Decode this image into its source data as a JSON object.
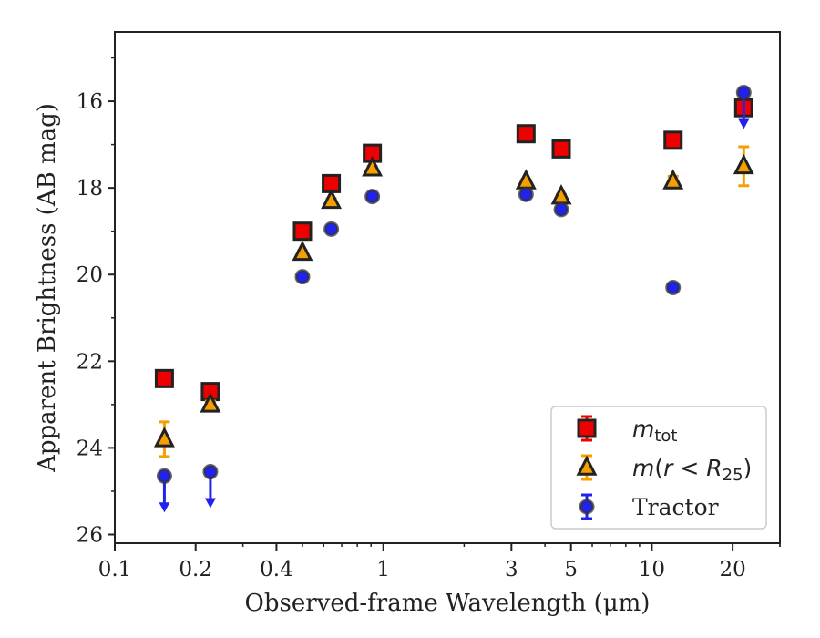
{
  "chart_data": {
    "type": "scatter",
    "xlabel": "Observed-frame Wavelength (μm)",
    "ylabel": "Apparent Brightness (AB mag)",
    "x_scale": "log",
    "xlim": [
      0.1,
      30
    ],
    "ylim": [
      26.2,
      14.4
    ],
    "x_ticks": [
      {
        "value": 0.1,
        "label": "0.1"
      },
      {
        "value": 0.2,
        "label": "0.2"
      },
      {
        "value": 0.4,
        "label": "0.4"
      },
      {
        "value": 1,
        "label": "1"
      },
      {
        "value": 3,
        "label": "3"
      },
      {
        "value": 5,
        "label": "5"
      },
      {
        "value": 10,
        "label": "10"
      },
      {
        "value": 20,
        "label": "20"
      }
    ],
    "y_ticks": [
      {
        "value": 16,
        "label": "16"
      },
      {
        "value": 18,
        "label": "18"
      },
      {
        "value": 20,
        "label": "20"
      },
      {
        "value": 22,
        "label": "22"
      },
      {
        "value": 24,
        "label": "24"
      },
      {
        "value": 26,
        "label": "26"
      }
    ],
    "grid": false,
    "legend_position": "bottom-right",
    "series": [
      {
        "key": "mtot",
        "legend_label": "m_tot",
        "marker": "square",
        "color": "#ee0000",
        "edge_color": "#222222",
        "err_color": "#ee0000",
        "points": [
          {
            "x": 0.153,
            "y": 22.4,
            "err": 0.06
          },
          {
            "x": 0.227,
            "y": 22.7,
            "err": 0.06
          },
          {
            "x": 0.5,
            "y": 19.0,
            "err": 0.05
          },
          {
            "x": 0.64,
            "y": 17.9,
            "err": 0.05
          },
          {
            "x": 0.91,
            "y": 17.2,
            "err": 0.05
          },
          {
            "x": 3.4,
            "y": 16.75,
            "err": 0.05
          },
          {
            "x": 4.6,
            "y": 17.1,
            "err": 0.05
          },
          {
            "x": 12.0,
            "y": 16.9,
            "err": 0.05
          },
          {
            "x": 22.0,
            "y": 16.15,
            "err": 0.05
          }
        ]
      },
      {
        "key": "mr25",
        "legend_label": "m(r < R25)",
        "marker": "triangle",
        "color": "#f5a000",
        "edge_color": "#222222",
        "err_color": "#f5a000",
        "points": [
          {
            "x": 0.153,
            "y": 23.8,
            "err": 0.4
          },
          {
            "x": 0.227,
            "y": 23.0,
            "err": 0.08
          },
          {
            "x": 0.5,
            "y": 19.5,
            "err": 0.05
          },
          {
            "x": 0.64,
            "y": 18.3,
            "err": 0.05
          },
          {
            "x": 0.91,
            "y": 17.55,
            "err": 0.05
          },
          {
            "x": 3.4,
            "y": 17.85,
            "err": 0.05
          },
          {
            "x": 4.6,
            "y": 18.2,
            "err": 0.05
          },
          {
            "x": 12.0,
            "y": 17.85,
            "err": 0.12
          },
          {
            "x": 22.0,
            "y": 17.5,
            "err": 0.45
          }
        ]
      },
      {
        "key": "tractor",
        "legend_label": "Tractor",
        "marker": "circle",
        "color": "#2222ee",
        "edge_color": "#333333",
        "err_color": "#2222ee",
        "points": [
          {
            "x": 0.153,
            "y": 24.65,
            "upper_limit": true
          },
          {
            "x": 0.227,
            "y": 24.55,
            "upper_limit": true
          },
          {
            "x": 0.5,
            "y": 20.05,
            "err": 0.05
          },
          {
            "x": 0.64,
            "y": 18.95,
            "err": 0.05
          },
          {
            "x": 0.91,
            "y": 18.2,
            "err": 0.05
          },
          {
            "x": 3.4,
            "y": 18.15,
            "err": 0.05
          },
          {
            "x": 4.6,
            "y": 18.5,
            "err": 0.05
          },
          {
            "x": 12.0,
            "y": 20.3,
            "err": 0.05
          },
          {
            "x": 22.0,
            "y": 15.8,
            "upper_limit": true
          }
        ]
      }
    ]
  }
}
